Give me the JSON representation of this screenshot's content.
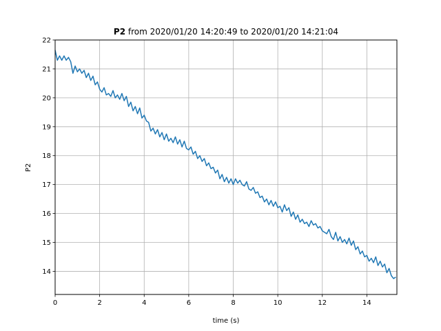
{
  "chart_data": {
    "type": "line",
    "title_bold": "P2",
    "title_rest": " from 2020/01/20 14:20:49 to 2020/01/20 14:21:04",
    "xlabel": "time (s)",
    "ylabel": "P2",
    "xlim": [
      0,
      15.35
    ],
    "ylim": [
      13.2,
      22
    ],
    "xticks": [
      0,
      2,
      4,
      6,
      8,
      10,
      12,
      14
    ],
    "yticks": [
      14,
      15,
      16,
      17,
      18,
      19,
      20,
      21,
      22
    ],
    "grid": true,
    "series": [
      {
        "color": "#1f77b4",
        "x": [
          0,
          0.1,
          0.2,
          0.3,
          0.4,
          0.5,
          0.6,
          0.7,
          0.8,
          0.9,
          1.0,
          1.1,
          1.2,
          1.3,
          1.4,
          1.5,
          1.6,
          1.7,
          1.8,
          1.9,
          2.0,
          2.1,
          2.2,
          2.3,
          2.4,
          2.5,
          2.6,
          2.7,
          2.8,
          2.9,
          3.0,
          3.1,
          3.2,
          3.3,
          3.4,
          3.5,
          3.6,
          3.7,
          3.8,
          3.9,
          4.0,
          4.1,
          4.2,
          4.3,
          4.4,
          4.5,
          4.6,
          4.7,
          4.8,
          4.9,
          5.0,
          5.1,
          5.2,
          5.3,
          5.4,
          5.5,
          5.6,
          5.7,
          5.8,
          5.9,
          6.0,
          6.1,
          6.2,
          6.3,
          6.4,
          6.5,
          6.6,
          6.7,
          6.8,
          6.9,
          7.0,
          7.1,
          7.2,
          7.3,
          7.4,
          7.5,
          7.6,
          7.7,
          7.8,
          7.9,
          8.0,
          8.1,
          8.2,
          8.3,
          8.4,
          8.5,
          8.6,
          8.7,
          8.8,
          8.9,
          9.0,
          9.1,
          9.2,
          9.3,
          9.4,
          9.5,
          9.6,
          9.7,
          9.8,
          9.9,
          10.0,
          10.1,
          10.2,
          10.3,
          10.4,
          10.5,
          10.6,
          10.7,
          10.8,
          10.9,
          11.0,
          11.1,
          11.2,
          11.3,
          11.4,
          11.5,
          11.6,
          11.7,
          11.8,
          11.9,
          12.0,
          12.1,
          12.2,
          12.3,
          12.4,
          12.5,
          12.6,
          12.7,
          12.8,
          12.9,
          13.0,
          13.1,
          13.2,
          13.3,
          13.4,
          13.5,
          13.6,
          13.7,
          13.8,
          13.9,
          14.0,
          14.1,
          14.2,
          14.3,
          14.4,
          14.5,
          14.6,
          14.7,
          14.8,
          14.9,
          15.0,
          15.1,
          15.2,
          15.3
        ],
        "y": [
          21.65,
          21.3,
          21.45,
          21.3,
          21.45,
          21.3,
          21.4,
          21.25,
          20.85,
          21.1,
          20.9,
          21.0,
          20.85,
          20.95,
          20.7,
          20.85,
          20.6,
          20.75,
          20.45,
          20.55,
          20.3,
          20.2,
          20.35,
          20.1,
          20.15,
          20.05,
          20.25,
          20.0,
          20.1,
          19.95,
          20.15,
          19.9,
          20.05,
          19.7,
          19.85,
          19.55,
          19.7,
          19.45,
          19.65,
          19.3,
          19.4,
          19.2,
          19.15,
          18.85,
          18.95,
          18.75,
          18.9,
          18.65,
          18.8,
          18.55,
          18.75,
          18.5,
          18.6,
          18.45,
          18.65,
          18.4,
          18.55,
          18.3,
          18.5,
          18.25,
          18.2,
          18.3,
          18.05,
          18.15,
          17.9,
          18.0,
          17.8,
          17.9,
          17.65,
          17.75,
          17.55,
          17.6,
          17.4,
          17.5,
          17.2,
          17.35,
          17.1,
          17.25,
          17.05,
          17.2,
          17.0,
          17.2,
          17.05,
          17.15,
          17.0,
          16.95,
          17.1,
          16.85,
          16.8,
          16.9,
          16.7,
          16.75,
          16.55,
          16.6,
          16.4,
          16.5,
          16.3,
          16.45,
          16.25,
          16.4,
          16.2,
          16.25,
          16.05,
          16.3,
          16.1,
          16.2,
          15.9,
          16.05,
          15.8,
          15.95,
          15.7,
          15.8,
          15.65,
          15.7,
          15.55,
          15.75,
          15.6,
          15.65,
          15.5,
          15.55,
          15.4,
          15.35,
          15.3,
          15.45,
          15.2,
          15.1,
          15.35,
          15.05,
          15.2,
          15.0,
          15.1,
          14.95,
          15.15,
          14.9,
          15.05,
          14.75,
          14.85,
          14.6,
          14.7,
          14.5,
          14.55,
          14.35,
          14.45,
          14.3,
          14.5,
          14.2,
          14.35,
          14.15,
          14.25,
          13.95,
          14.1,
          13.85,
          13.75,
          13.8
        ]
      }
    ]
  }
}
